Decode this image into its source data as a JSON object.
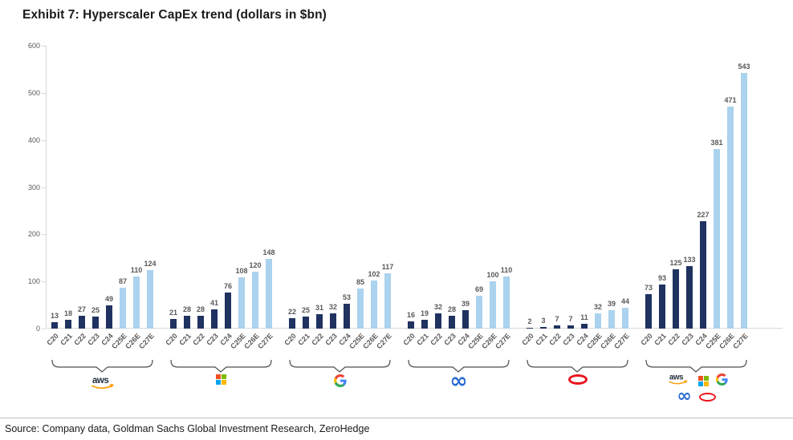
{
  "title": "Exhibit 7: Hyperscaler CapEx trend (dollars in $bn)",
  "source": "Source: Company data, Goldman Sachs Global Investment Research, ZeroHedge",
  "chart_data": {
    "type": "bar",
    "categories": [
      "C20",
      "C21",
      "C22",
      "C23",
      "C24",
      "C25E",
      "C26E",
      "C27E"
    ],
    "estimate_from_index": 5,
    "ylim": [
      0,
      600
    ],
    "yticks": [
      0,
      100,
      200,
      300,
      400,
      500,
      600
    ],
    "grid": false,
    "legend": "none",
    "colors": {
      "actual": "#1f3260",
      "estimate": "#abd2ee",
      "value_label": "#595959"
    },
    "series": [
      {
        "name": "AWS",
        "values": [
          13,
          18,
          27,
          25,
          49,
          87,
          110,
          124
        ]
      },
      {
        "name": "Microsoft",
        "values": [
          21,
          28,
          28,
          41,
          76,
          108,
          120,
          148
        ]
      },
      {
        "name": "Google",
        "values": [
          22,
          25,
          31,
          32,
          53,
          85,
          102,
          117
        ]
      },
      {
        "name": "Meta",
        "values": [
          16,
          19,
          32,
          28,
          39,
          69,
          100,
          110
        ]
      },
      {
        "name": "Oracle",
        "values": [
          2,
          3,
          7,
          7,
          11,
          32,
          39,
          44
        ]
      },
      {
        "name": "Total",
        "values": [
          73,
          93,
          125,
          133,
          227,
          381,
          471,
          543
        ]
      }
    ],
    "logos": [
      "aws",
      "microsoft",
      "google",
      "meta",
      "oracle",
      "all"
    ]
  }
}
